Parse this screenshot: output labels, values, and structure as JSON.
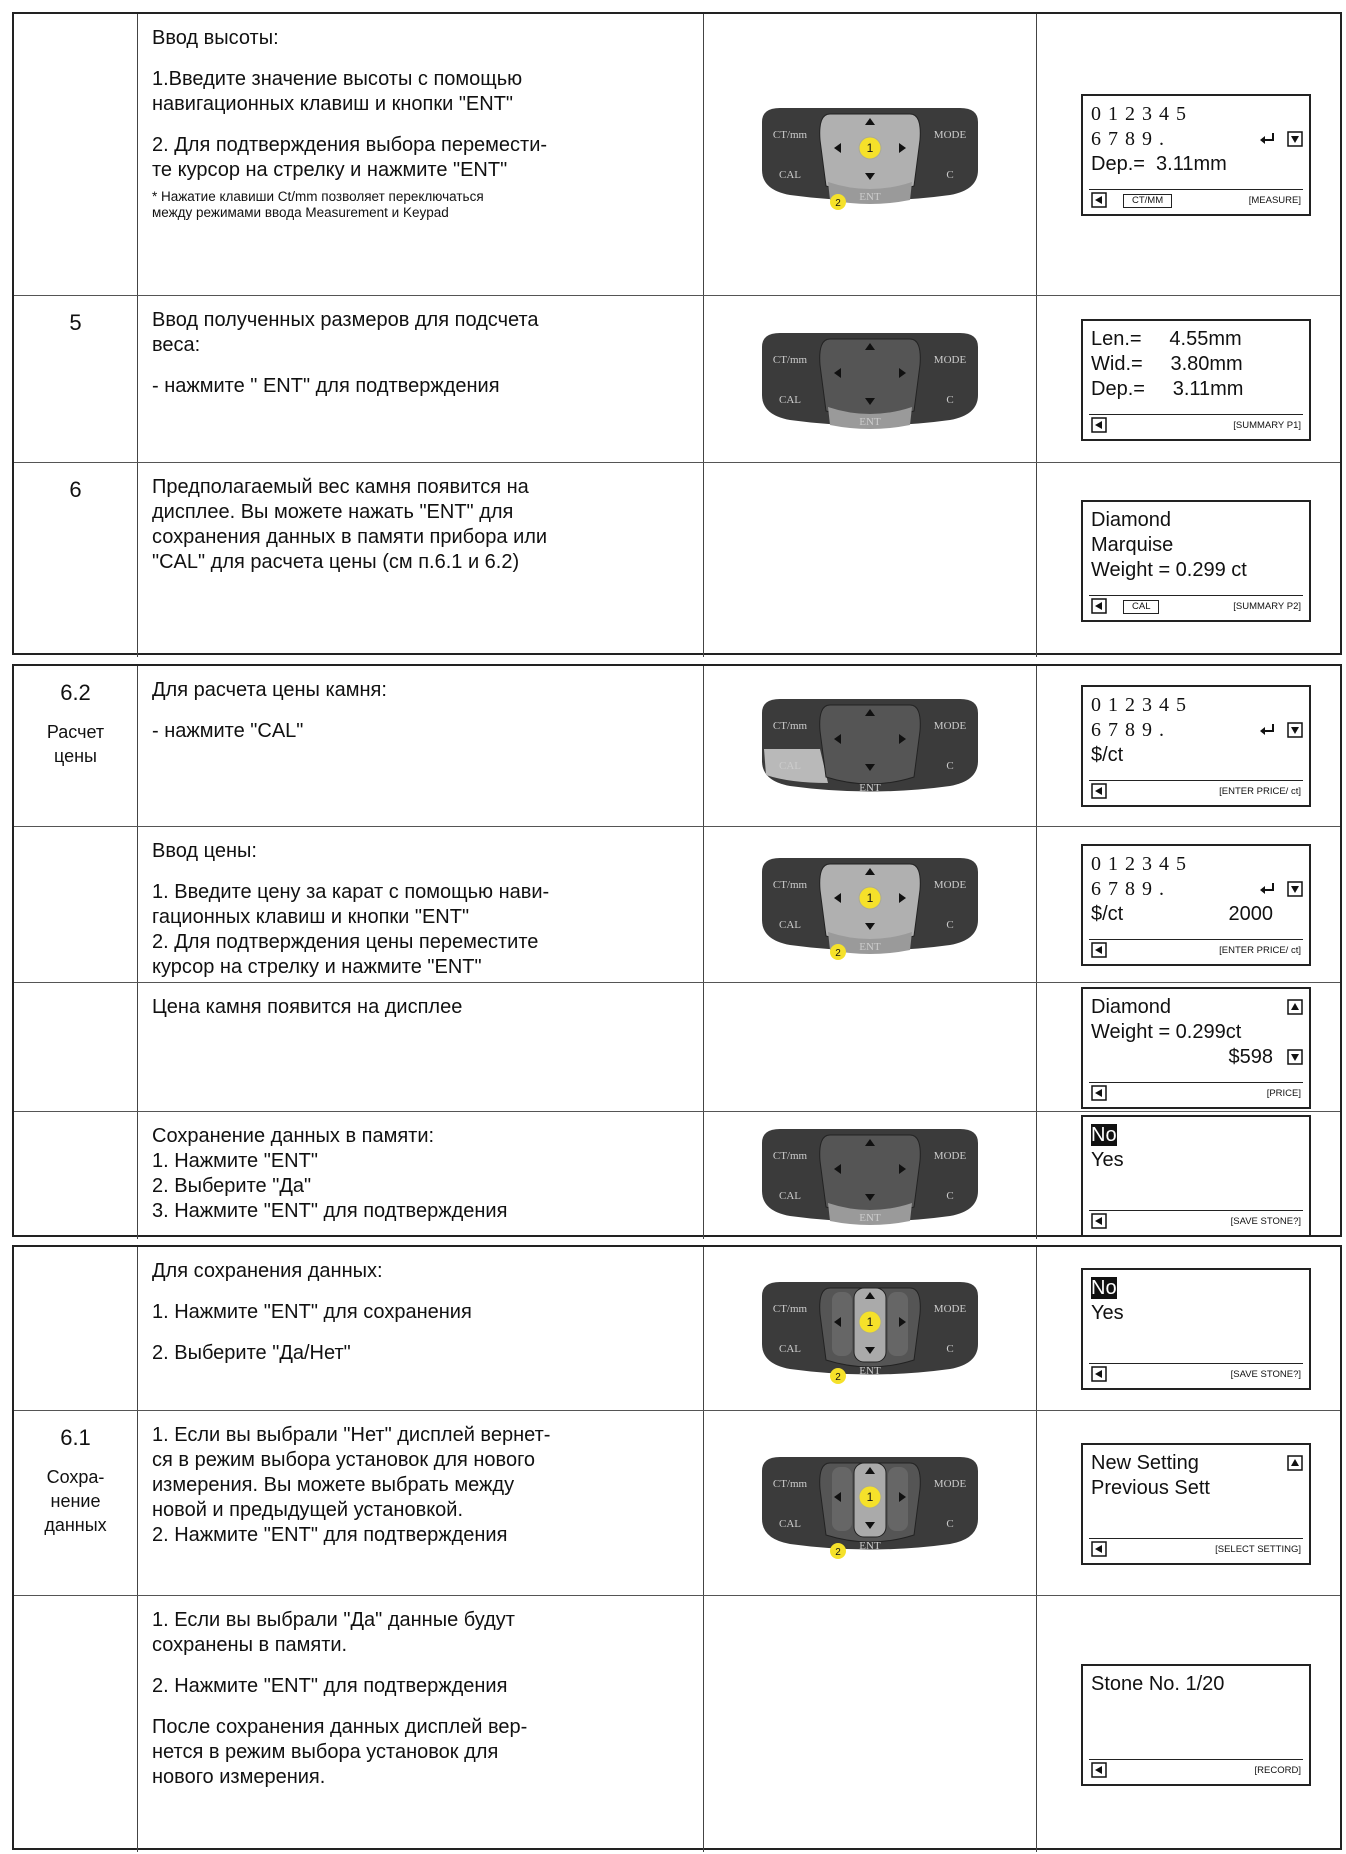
{
  "keypad_labels": {
    "ctmm": "CT/mm",
    "mode": "MODE",
    "cal": "CAL",
    "c": "C",
    "ent": "ENT"
  },
  "badges": [
    "1",
    "2"
  ],
  "blocks": [
    {
      "rows": [
        {
          "paragraphs": [
            [
              "Ввод высоты:"
            ],
            [
              "1.Введите значение высоты с помощью",
              "навигационных клавиш и кнопки \"ENT\""
            ],
            [
              "2. Для подтверждения выбора перемести-",
              "те курсор на стрелку и нажмите \"ENT\""
            ]
          ],
          "note": [
            "* Нажатие клавиши Ct/mm позволяет переключаться",
            "между режимами ввода Measurement и Keypad"
          ],
          "display": {
            "lines": [
              "0 1 2 3 4 5",
              "6 7 8 9 .",
              "Dep.=  3.11mm"
            ],
            "footer": {
              "button": "CT/MM",
              "status": "[MEASURE]"
            }
          }
        },
        {
          "step": "5",
          "paragraphs": [
            [
              "Ввод полученных размеров для подсчета",
              "веса:"
            ],
            [
              "- нажмите \" ENT\" для подтверждения"
            ]
          ],
          "display": {
            "lines": [
              "Len.=     4.55mm",
              "Wid.=     3.80mm",
              "Dep.=     3.11mm"
            ],
            "footer": {
              "status": "[SUMMARY P1]"
            }
          }
        },
        {
          "step": "6",
          "paragraphs": [
            [
              "Предполагаемый вес камня появится на",
              "дисплее. Вы можете нажать \"ENT\" для",
              "сохранения данных в памяти прибора или",
              "\"CAL\" для расчета цены (см п.6.1 и 6.2)"
            ]
          ],
          "display": {
            "lines": [
              "Diamond",
              "Marquise",
              "Weight = 0.299 ct"
            ],
            "footer": {
              "button": "CAL",
              "status": "[SUMMARY P2]"
            }
          }
        }
      ]
    },
    {
      "rows": [
        {
          "step": "6.2",
          "section": [
            "Расчет",
            "цены"
          ],
          "paragraphs": [
            [
              "Для расчета цены камня:"
            ],
            [
              "- нажмите \"CAL\""
            ]
          ],
          "display": {
            "lines": [
              "0 1 2 3 4 5",
              "6 7 8 9 .",
              "$/ct"
            ],
            "footer": {
              "status": "[ENTER PRICE/ ct]"
            }
          }
        },
        {
          "paragraphs": [
            [
              "Ввод цены:"
            ],
            [
              "1. Введите цену за карат с помощью нави-",
              "гационных клавиш и кнопки \"ENT\"",
              "2. Для подтверждения цены переместите",
              "курсор на стрелку и нажмите \"ENT\""
            ]
          ],
          "display": {
            "lines": [
              "0 1 2 3 4 5",
              "6 7 8 9 .",
              {
                "left": "$/ct",
                "right": "2000"
              }
            ],
            "footer": {
              "status": "[ENTER PRICE/ ct]"
            }
          }
        },
        {
          "paragraphs": [
            [
              "Цена камня появится на дисплее"
            ]
          ],
          "display": {
            "lines": [
              "Diamond",
              "Weight = 0.299ct",
              {
                "right": "$598"
              }
            ],
            "footer": {
              "status": "[PRICE]"
            }
          }
        },
        {
          "paragraphs": [
            [
              "Сохранение данных в памяти:",
              "1. Нажмите \"ENT\"",
              "2. Выберите \"Да\"",
              "3. Нажмите \"ENT\" для подтверждения"
            ]
          ],
          "display": {
            "lines": [
              "No",
              "Yes"
            ],
            "footer": {
              "status": "[SAVE STONE?]"
            }
          }
        }
      ]
    },
    {
      "rows": [
        {
          "paragraphs": [
            [
              "Для сохранения данных:"
            ],
            [
              "1. Нажмите \"ENT\" для сохранения"
            ],
            [
              "2. Выберите \"Да/Нет\""
            ]
          ],
          "display": {
            "lines": [
              "No",
              "Yes"
            ],
            "footer": {
              "status": "[SAVE STONE?]"
            }
          }
        },
        {
          "step": "6.1",
          "section": [
            "Сохра-",
            "нение",
            "данных"
          ],
          "paragraphs": [
            [
              "1. Если вы выбрали \"Нет\" дисплей вернет-",
              "ся в режим выбора установок для нового",
              "измерения. Вы можете выбрать между",
              "новой и предыдущей установкой.",
              "2. Нажмите \"ENT\" для подтверждения"
            ]
          ],
          "display": {
            "lines": [
              "New Setting",
              "Previous Sett"
            ],
            "footer": {
              "status": "[SELECT SETTING]"
            }
          }
        },
        {
          "paragraphs": [
            [
              "1. Если вы выбрали \"Да\" данные будут",
              "сохранены в памяти."
            ],
            [
              "2. Нажмите \"ENT\" для подтверждения"
            ],
            [
              "После сохранения данных дисплей вер-",
              "нется в режим выбора установок для",
              "нового измерения."
            ]
          ],
          "display": {
            "lines": [
              "Stone No. 1/20"
            ],
            "footer": {
              "status": "[RECORD]"
            }
          }
        }
      ]
    }
  ]
}
